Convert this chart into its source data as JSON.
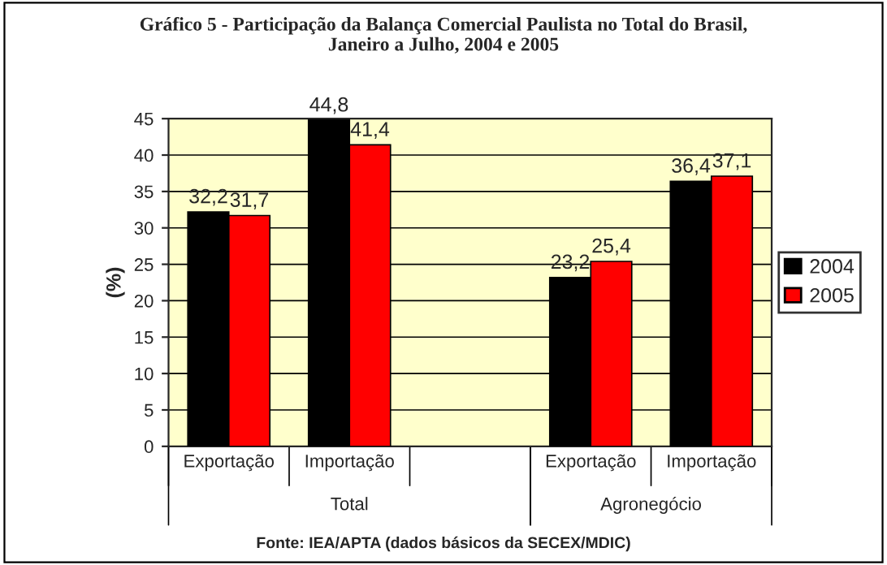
{
  "chart_data": {
    "type": "bar",
    "title": "Gráfico 5 - Participação da Balança Comercial Paulista no Total do Brasil,\nJaneiro a Julho, 2004 e 2005",
    "ylabel": "(%)",
    "categories": [
      "Exportação",
      "Importação",
      null,
      "Exportação",
      "Importação"
    ],
    "series": [
      {
        "name": "2004",
        "color": "#000000",
        "values": [
          32.2,
          44.8,
          null,
          23.2,
          36.4
        ],
        "value_labels": [
          "32,2",
          "44,8",
          null,
          "23,2",
          "36,4"
        ]
      },
      {
        "name": "2005",
        "color": "#ff0000",
        "values": [
          31.7,
          41.4,
          null,
          25.4,
          37.1
        ],
        "value_labels": [
          "31,7",
          "41,4",
          null,
          "25,4",
          "37,1"
        ]
      }
    ],
    "ylim": [
      0,
      45
    ],
    "yticks": [
      0,
      5,
      10,
      15,
      20,
      25,
      30,
      35,
      40,
      45
    ],
    "grid": "y",
    "legend": "right",
    "annotations": [
      "Total",
      "Agronegócio",
      "Fonte: IEA/APTA (dados básicos da SECEX/MDIC)"
    ]
  }
}
